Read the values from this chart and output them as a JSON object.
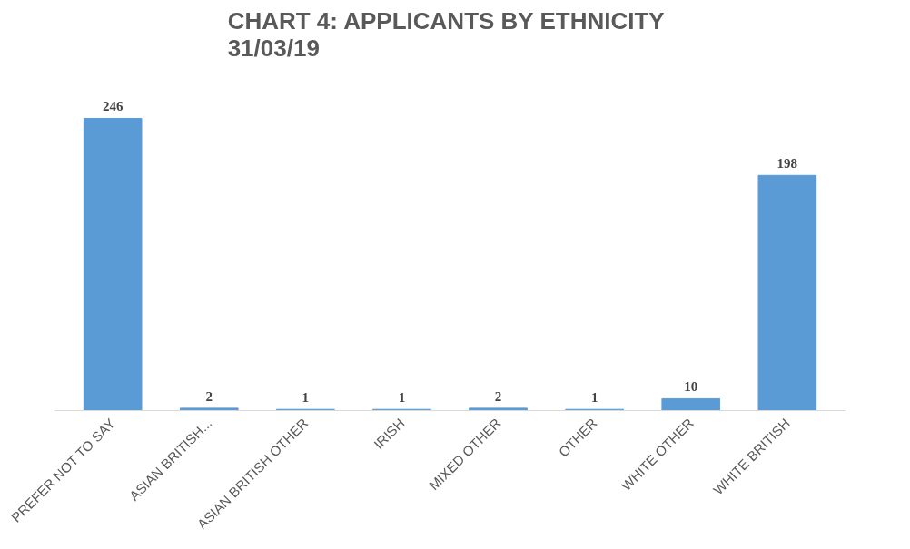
{
  "chart_data": {
    "type": "bar",
    "title": "CHART 4: APPLICANTS  BY ETHNICITY\n31/03/19",
    "categories": [
      "PREFER NOT TO SAY",
      "ASIAN BRITISH...",
      "ASIAN BRITISH OTHER",
      "IRISH",
      "MIXED OTHER",
      "OTHER",
      "WHITE OTHER",
      "WHITE BRITISH"
    ],
    "values": [
      246,
      2,
      1,
      1,
      2,
      1,
      10,
      198
    ],
    "color": "#5b9bd5",
    "data_labels": true
  }
}
